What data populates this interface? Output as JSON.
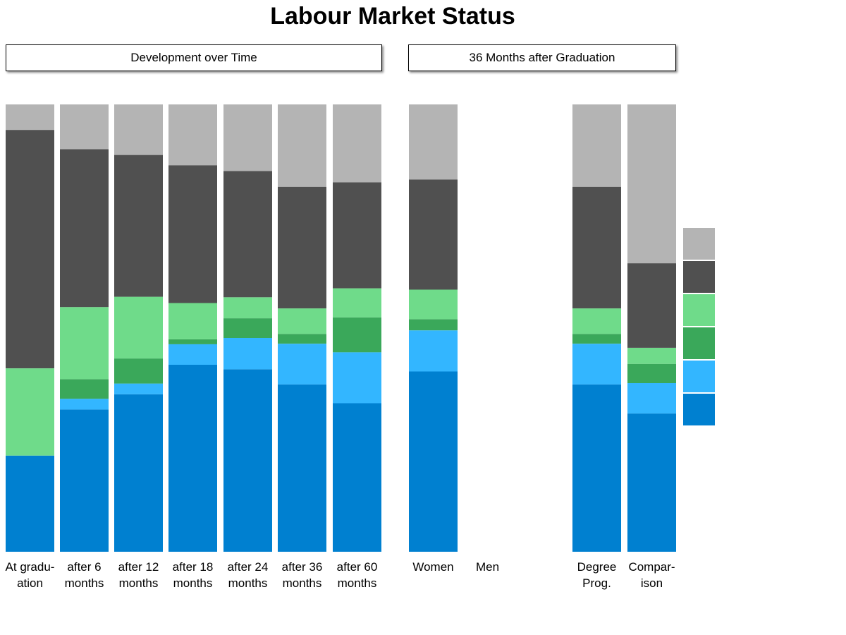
{
  "page": {
    "title": "Labour Market Status"
  },
  "panels": {
    "development": "Development over Time",
    "after_36_months": "36 Months after Graduation"
  },
  "colors": {
    "status_1": "#0080D0",
    "status_2": "#33B6FF",
    "status_3": "#3AA85A",
    "status_4": "#6FDB8A",
    "status_5": "#505050",
    "status_6": "#B4B4B4"
  },
  "chart_data": {
    "type": "bar",
    "stacked": true,
    "title": "Labour Market Status",
    "xlabel": "",
    "ylabel": "",
    "ylim": [
      0,
      100
    ],
    "grid": false,
    "legend": "right (color swatches only, no text)",
    "categories": [
      [
        "At gradu-",
        "ation"
      ],
      [
        "after 6",
        "months"
      ],
      [
        "after 12",
        "months"
      ],
      [
        "after 18",
        "months"
      ],
      [
        "after 24",
        "months"
      ],
      [
        "after 36",
        "months"
      ],
      [
        "after 60",
        "months"
      ],
      [
        "Women"
      ],
      [
        "Men"
      ],
      [
        "Degree",
        "Prog."
      ],
      [
        "Compar-",
        "ison"
      ]
    ],
    "series": [
      {
        "color_key": "status_1",
        "values": [
          21.5,
          31.8,
          35.2,
          41.8,
          40.8,
          37.4,
          33.2,
          40.3,
          null,
          37.4,
          30.9
        ]
      },
      {
        "color_key": "status_2",
        "values": [
          0.0,
          2.4,
          2.4,
          4.6,
          7.0,
          9.1,
          11.4,
          9.2,
          null,
          9.1,
          6.8
        ]
      },
      {
        "color_key": "status_3",
        "values": [
          0.0,
          4.4,
          5.6,
          1.1,
          4.4,
          2.2,
          7.8,
          2.5,
          null,
          2.2,
          4.3
        ]
      },
      {
        "color_key": "status_4",
        "values": [
          19.5,
          16.1,
          13.8,
          8.1,
          4.7,
          5.7,
          6.5,
          6.6,
          null,
          5.7,
          3.6
        ]
      },
      {
        "color_key": "status_5",
        "values": [
          53.3,
          35.3,
          31.7,
          30.8,
          28.2,
          27.2,
          23.7,
          24.6,
          null,
          27.2,
          18.9
        ]
      },
      {
        "color_key": "status_6",
        "values": [
          5.7,
          10.0,
          11.3,
          13.6,
          14.9,
          18.4,
          17.4,
          16.8,
          null,
          18.4,
          35.5
        ]
      }
    ]
  }
}
